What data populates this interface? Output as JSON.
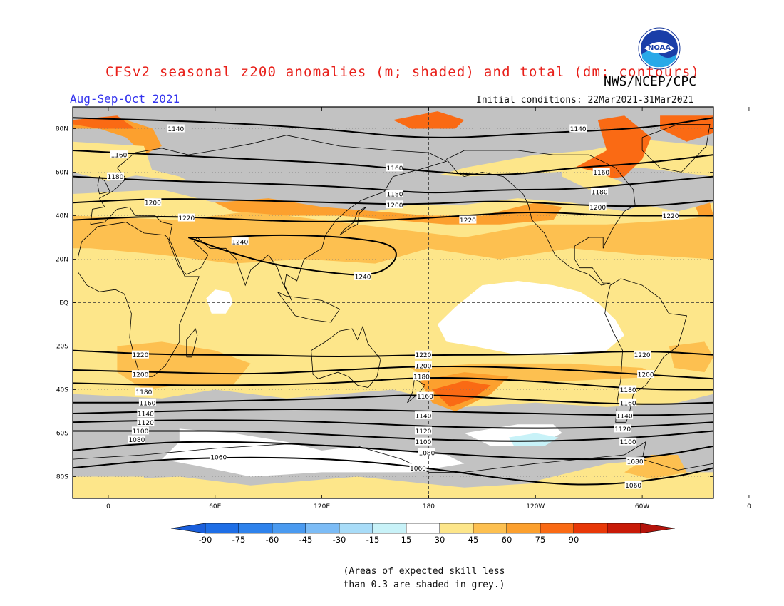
{
  "title": "CFSv2 seasonal z200 anomalies (m; shaded) and total (dm; contours)",
  "agency": "NWS/NCEP/CPC",
  "season": "Aug-Sep-Oct 2021",
  "initial_conditions": "Initial conditions: 22Mar2021-31Mar2021",
  "skill_note": [
    "(Areas of expected skill less",
    "than 0.3 are shaded in grey.)"
  ],
  "logo": {
    "icon": "noaa-logo",
    "text": "NOAA"
  },
  "map": {
    "lat_labels": [
      "80N",
      "60N",
      "40N",
      "20N",
      "EQ",
      "20S",
      "40S",
      "60S",
      "80S"
    ],
    "lon_labels": [
      "0",
      "60E",
      "120E",
      "180",
      "120W",
      "60W",
      "0"
    ],
    "contour_labels": [
      {
        "text": "1140",
        "lat": 80,
        "lon": 38
      },
      {
        "text": "1140",
        "lat": 80,
        "lon": -96
      },
      {
        "text": "1160",
        "lat": 68,
        "lon": 6
      },
      {
        "text": "1160",
        "lat": 62,
        "lon": 161
      },
      {
        "text": "1160",
        "lat": 60,
        "lon": -83
      },
      {
        "text": "1180",
        "lat": 58,
        "lon": 4
      },
      {
        "text": "1180",
        "lat": 50,
        "lon": 161
      },
      {
        "text": "1180",
        "lat": 51,
        "lon": -84
      },
      {
        "text": "1200",
        "lat": 46,
        "lon": 25
      },
      {
        "text": "1200",
        "lat": 45,
        "lon": 161
      },
      {
        "text": "1200",
        "lat": 44,
        "lon": -85
      },
      {
        "text": "1220",
        "lat": 39,
        "lon": 44
      },
      {
        "text": "1220",
        "lat": 38,
        "lon": -158
      },
      {
        "text": "1220",
        "lat": 40,
        "lon": -44
      },
      {
        "text": "1240",
        "lat": 28,
        "lon": 74
      },
      {
        "text": "1240",
        "lat": 12,
        "lon": 143
      },
      {
        "text": "1220",
        "lat": -24,
        "lon": 18
      },
      {
        "text": "1220",
        "lat": -24,
        "lon": 177
      },
      {
        "text": "1220",
        "lat": -24,
        "lon": -60
      },
      {
        "text": "1200",
        "lat": -29,
        "lon": 177
      },
      {
        "text": "1200",
        "lat": -33,
        "lon": 18
      },
      {
        "text": "1200",
        "lat": -33,
        "lon": -58
      },
      {
        "text": "1180",
        "lat": -34,
        "lon": 176
      },
      {
        "text": "1180",
        "lat": -41,
        "lon": 20
      },
      {
        "text": "1180",
        "lat": -40,
        "lon": -68
      },
      {
        "text": "1160",
        "lat": -43,
        "lon": 178
      },
      {
        "text": "1160",
        "lat": -46,
        "lon": 22
      },
      {
        "text": "1160",
        "lat": -46,
        "lon": -68
      },
      {
        "text": "1140",
        "lat": -51,
        "lon": 21
      },
      {
        "text": "1140",
        "lat": -52,
        "lon": 177
      },
      {
        "text": "1140",
        "lat": -52,
        "lon": -70
      },
      {
        "text": "1120",
        "lat": -55,
        "lon": 21
      },
      {
        "text": "1120",
        "lat": -59,
        "lon": 177
      },
      {
        "text": "1120",
        "lat": -58,
        "lon": -71
      },
      {
        "text": "1100",
        "lat": -59,
        "lon": 18
      },
      {
        "text": "1100",
        "lat": -64,
        "lon": 177
      },
      {
        "text": "1100",
        "lat": -64,
        "lon": -68
      },
      {
        "text": "1080",
        "lat": -63,
        "lon": 16
      },
      {
        "text": "1080",
        "lat": -69,
        "lon": 179
      },
      {
        "text": "1080",
        "lat": -73,
        "lon": -64
      },
      {
        "text": "1060",
        "lat": -71,
        "lon": 62
      },
      {
        "text": "1060",
        "lat": -76,
        "lon": 174
      },
      {
        "text": "1060",
        "lat": -84,
        "lon": -65
      }
    ]
  },
  "colorbar": {
    "labels": [
      "-90",
      "-75",
      "-60",
      "-45",
      "-30",
      "-15",
      "15",
      "30",
      "45",
      "60",
      "75",
      "90"
    ],
    "colors": [
      "#1e6ee6",
      "#2e82ec",
      "#4a9af0",
      "#7cbcf6",
      "#a8dcf8",
      "#c8f2f8",
      "#ffffff",
      "#fde68a",
      "#fdc050",
      "#fca02e",
      "#fa6a14",
      "#e83808",
      "#c81a08"
    ],
    "low_end_color": "#1a5fdc",
    "high_end_color": "#b4140c"
  },
  "shading_colors": {
    "grey_low_skill": "#c2c2c2",
    "pos_15_30": "#fde68a",
    "pos_30_45": "#fdc050",
    "pos_45_60": "#fca02e",
    "pos_60_75": "#fa6a14",
    "neg_15_30": "#c8f2f8"
  }
}
